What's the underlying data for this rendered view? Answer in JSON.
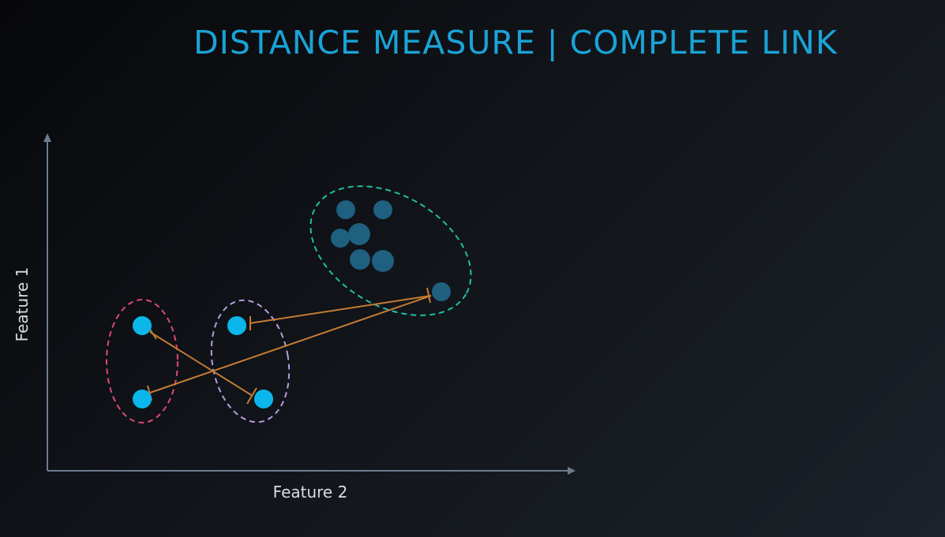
{
  "title": "DISTANCE MEASURE | COMPLETE LINK",
  "axes": {
    "x_label": "Feature 2",
    "y_label": "Feature 1"
  },
  "colors": {
    "title": "#1aa3d6",
    "axis": "#6e7c8f",
    "point_light": "#0bb6ea",
    "point_dark": "#1f5f7f",
    "link": "#c47c34",
    "cluster_pink": "#e0467a",
    "cluster_purple": "#b79be0",
    "cluster_teal": "#1fbfa8"
  },
  "clusters": [
    {
      "name": "pink-cluster",
      "color": "pink"
    },
    {
      "name": "purple-cluster",
      "color": "purple"
    },
    {
      "name": "teal-cluster",
      "color": "teal"
    }
  ],
  "links": [
    {
      "name": "complete-link-pink-to-purple"
    },
    {
      "name": "complete-link-purple-to-teal"
    },
    {
      "name": "complete-link-pink-to-teal"
    }
  ]
}
